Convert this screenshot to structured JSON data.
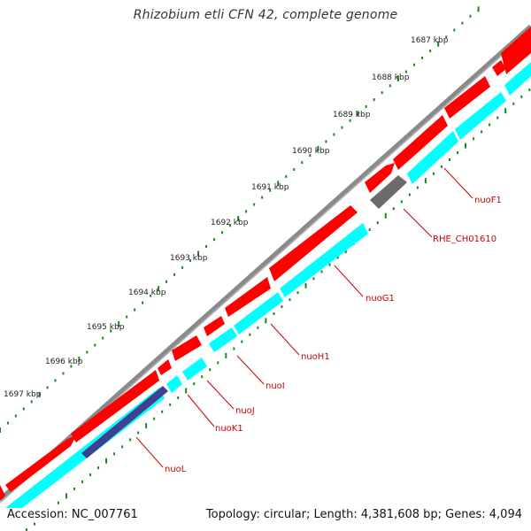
{
  "title": "Rhizobium etli CFN 42, complete genome",
  "footer": {
    "accession": "Accession: NC_007761",
    "summary": "Topology: circular; Length: 4,381,608 bp; Genes: 4,094"
  },
  "colors": {
    "background": "#ffffff",
    "backbone": "#8a8a8a",
    "tick_green": "#1a8a1a",
    "gene_forward": "#ff0000",
    "gene_reverse": "#00ffff",
    "gene_unknown": "#6b6b6b",
    "gene_dark": "#404090",
    "label_red": "#cc0000",
    "ruler_text": "#222222"
  },
  "ruler_labels": [
    "1687 kbp",
    "1688 kbp",
    "1689 kbp",
    "1690 kbp",
    "1691 kbp",
    "1692 kbp",
    "1693 kbp",
    "1694 kbp",
    "1695 kbp",
    "1696 kbp",
    "1697 kbp"
  ],
  "gene_labels": [
    "nuoF1",
    "RHE_CH01610",
    "nuoG1",
    "nuoH1",
    "nuoI",
    "nuoJ",
    "nuoK1",
    "nuoL"
  ]
}
